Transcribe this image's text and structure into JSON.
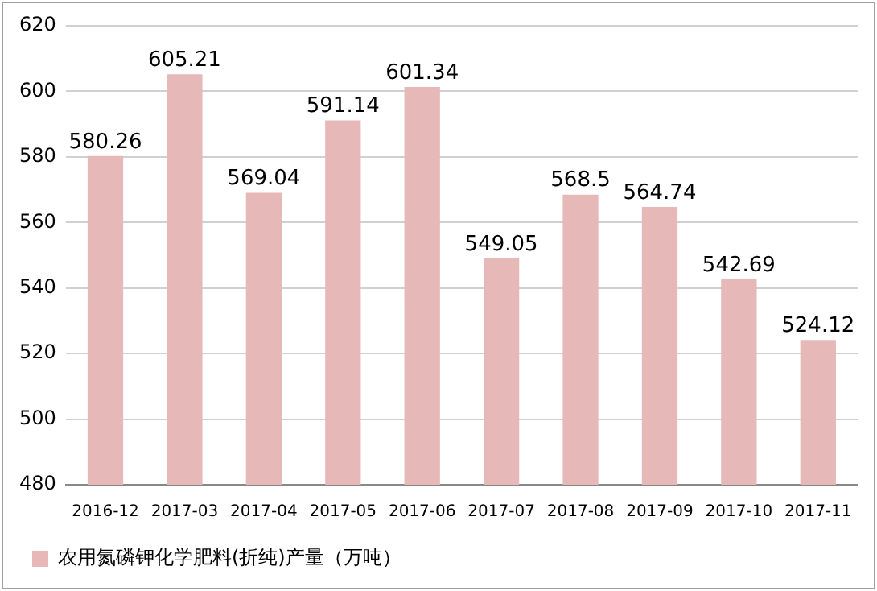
{
  "chart_data": {
    "type": "bar",
    "categories": [
      "2016-12",
      "2017-03",
      "2017-04",
      "2017-05",
      "2017-06",
      "2017-07",
      "2017-08",
      "2017-09",
      "2017-10",
      "2017-11"
    ],
    "series": [
      {
        "name": "农用氮磷钾化学肥料(折纯)产量（万吨）",
        "color": "#e6b9b8",
        "values": [
          580.26,
          605.21,
          569.04,
          591.14,
          601.34,
          549.05,
          568.5,
          564.74,
          542.69,
          524.12
        ]
      }
    ],
    "ylim": [
      480,
      620
    ],
    "yticks": [
      480,
      500,
      520,
      540,
      560,
      580,
      600,
      620
    ],
    "grid": "y",
    "legend": "bottom left",
    "data_labels": true
  }
}
